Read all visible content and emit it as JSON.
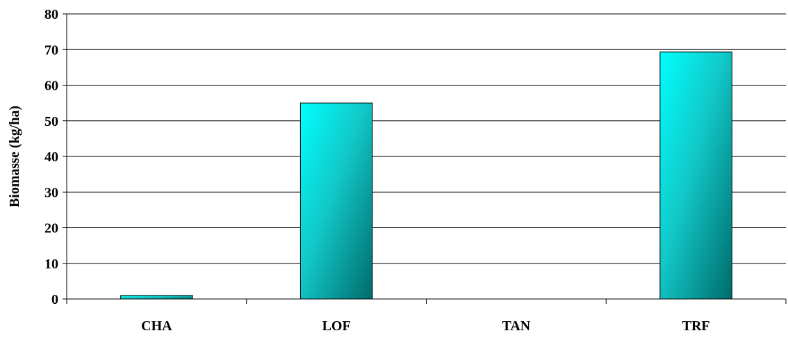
{
  "chart_data": {
    "type": "bar",
    "title": "",
    "xlabel": "",
    "ylabel": "Biomasse (kg/ha)",
    "categories": [
      "CHA",
      "LOF",
      "TAN",
      "TRF"
    ],
    "values": [
      1,
      55,
      0,
      69.3
    ],
    "ylim": [
      0,
      80
    ],
    "yticks": [
      0,
      10,
      20,
      30,
      40,
      50,
      60,
      70,
      80
    ],
    "grid": true,
    "legend": "none",
    "colors": {
      "bar_light": "#00ffff",
      "bar_dark": "#006b6b",
      "grid": "#000000",
      "axis": "#000000"
    }
  }
}
